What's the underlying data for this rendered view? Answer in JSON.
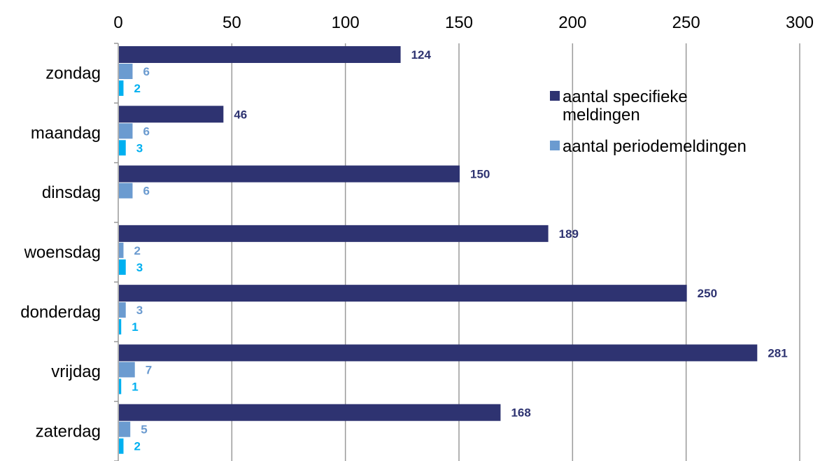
{
  "chart_data": {
    "type": "bar",
    "orientation": "horizontal",
    "categories": [
      "zondag",
      "maandag",
      "dinsdag",
      "woensdag",
      "donderdag",
      "vrijdag",
      "zaterdag"
    ],
    "series": [
      {
        "name": "aantal specifieke meldingen",
        "color": "#2e3371",
        "values": [
          124,
          46,
          150,
          189,
          250,
          281,
          168
        ]
      },
      {
        "name": "aantal periodemeldingen",
        "color": "#6b9bd0",
        "values": [
          6,
          6,
          6,
          2,
          3,
          7,
          5
        ]
      },
      {
        "name": "",
        "color": "#00b0f0",
        "values": [
          2,
          3,
          null,
          3,
          1,
          1,
          2
        ]
      }
    ],
    "xlim": [
      0,
      300
    ],
    "xticks": [
      0,
      50,
      100,
      150,
      200,
      250,
      300
    ],
    "x_axis_position": "top",
    "grid": "vertical",
    "legend": {
      "position": "top-right",
      "entries": [
        "aantal specifieke meldingen",
        "aantal periodemeldingen"
      ],
      "lines": [
        [
          "aantal specifieke",
          "meldingen"
        ],
        [
          "aantal periodemeldingen"
        ]
      ]
    },
    "title": "",
    "xlabel": "",
    "ylabel": ""
  }
}
